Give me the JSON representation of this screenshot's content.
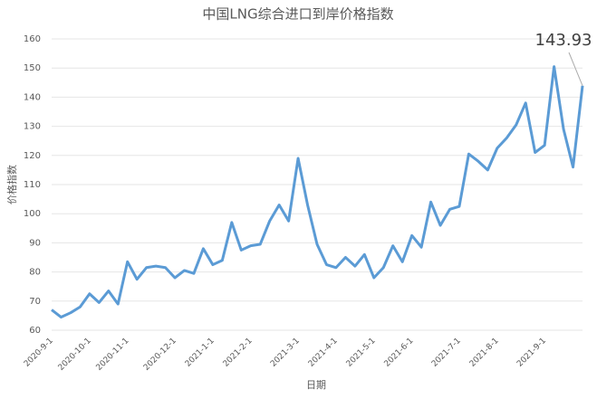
{
  "chart_data": {
    "type": "line",
    "title": "中国LNG综合进口到岸价格指数",
    "x_label": "日期",
    "y_label": "价格指数",
    "categories": [
      "2020-9-1",
      null,
      null,
      null,
      "2020-10-1",
      null,
      null,
      null,
      "2020-11-1",
      null,
      null,
      null,
      null,
      "2020-12-1",
      null,
      null,
      null,
      "2021-1-1",
      null,
      null,
      null,
      "2021-2-1",
      null,
      null,
      null,
      null,
      "2021-3-1",
      null,
      null,
      null,
      "2021-4-1",
      null,
      null,
      null,
      "2021-5-1",
      null,
      null,
      null,
      "2021-6-1",
      null,
      null,
      null,
      null,
      "2021-7-1",
      null,
      null,
      null,
      "2021-8-1",
      null,
      null,
      null,
      null,
      "2021-9-1",
      null,
      null,
      null,
      null
    ],
    "values": [
      67,
      64.5,
      66,
      68,
      72.5,
      69.5,
      73.5,
      69,
      83.5,
      77.5,
      81.5,
      82,
      81.5,
      78,
      80.5,
      79.5,
      88,
      82.5,
      84,
      97,
      87.5,
      89,
      89.5,
      97.5,
      103,
      97.5,
      119,
      103,
      89.5,
      82.5,
      81.5,
      85,
      82,
      86,
      78,
      81.5,
      89,
      83.5,
      92.5,
      88.5,
      104,
      96,
      101.5,
      102.5,
      120.5,
      118,
      115,
      122.5,
      126,
      130.5,
      138,
      121,
      123.5,
      150.5,
      129,
      116,
      143.93
    ],
    "color": "#5b9bd5",
    "ylim": [
      60,
      160
    ],
    "yticks": [
      60,
      70,
      80,
      90,
      100,
      110,
      120,
      130,
      140,
      150,
      160
    ],
    "grid": true
  }
}
